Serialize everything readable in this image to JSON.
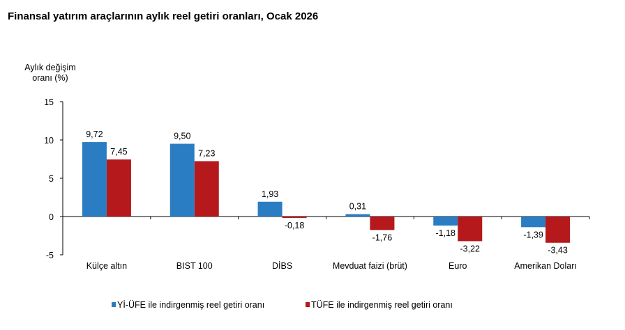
{
  "chart_data": {
    "type": "bar",
    "title": "Finansal yatırım araçlarının aylık reel getiri oranları, Ocak 2026",
    "ylabel": [
      "Aylık değişim",
      "oranı (%)"
    ],
    "ylim": [
      -5,
      15
    ],
    "yticks": [
      15,
      10,
      5,
      0,
      -5
    ],
    "categories": [
      "Külçe altın",
      "BIST 100",
      "DİBS",
      "Mevduat faizi (brüt)",
      "Euro",
      "Amerikan Doları"
    ],
    "series": [
      {
        "name": "Yİ-ÜFE ile indirgenmiş reel getiri oranı",
        "color": "#2a7dc2",
        "values": [
          9.72,
          9.5,
          1.93,
          0.31,
          -1.18,
          -1.39
        ],
        "labels": [
          "9,72",
          "9,50",
          "1,93",
          "0,31",
          "-1,18",
          "-1,39"
        ]
      },
      {
        "name": "TÜFE ile indirgenmiş reel getiri oranı",
        "color": "#b5191b",
        "values": [
          7.45,
          7.23,
          -0.18,
          -1.76,
          -3.22,
          -3.43
        ],
        "labels": [
          "7,45",
          "7,23",
          "-0,18",
          "-1,76",
          "-3,22",
          "-3,43"
        ]
      }
    ],
    "grid": false,
    "legend": "bottom"
  }
}
